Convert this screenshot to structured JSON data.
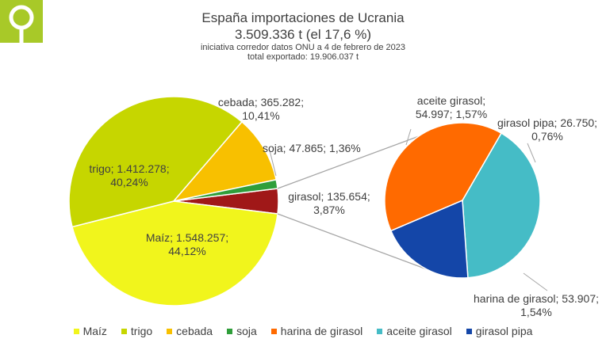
{
  "chart_data": {
    "type": "pie",
    "title": "España importaciones de Ucrania",
    "subtitle": "3.509.336 t (el 17,6 %)",
    "note_line1": "iniciativa corredor datos ONU a 4 de febrero de 2023",
    "note_line2": "total exportado: 19.906.037 t",
    "main_pie": [
      {
        "name": "Maíz",
        "value": 1548257,
        "label": [
          "Maíz; 1.548.257;",
          "44,12%"
        ],
        "color": "#f1f51c"
      },
      {
        "name": "trigo",
        "value": 1412278,
        "label": [
          "trigo; 1.412.278;",
          "40,24%"
        ],
        "color": "#c6d600"
      },
      {
        "name": "cebada",
        "value": 365282,
        "label": [
          "cebada; 365.282;",
          "10,41%"
        ],
        "color": "#f8c000"
      },
      {
        "name": "soja",
        "value": 47865,
        "label": [
          "soja; 47.865; 1,36%"
        ],
        "color": "#2f9e3a"
      },
      {
        "name": "girasol",
        "value": 135654,
        "label": [
          "girasol; 135.654;",
          "3,87%"
        ],
        "color": "#a01818"
      }
    ],
    "sub_pie": [
      {
        "name": "aceite girasol",
        "value": 54997,
        "label": [
          "aceite girasol;",
          "54.997; 1,57%"
        ],
        "color": "#45bcc6"
      },
      {
        "name": "girasol pipa",
        "value": 26750,
        "label": [
          "girasol pipa; 26.750;",
          "0,76%"
        ],
        "color": "#1446a8"
      },
      {
        "name": "harina de girasol",
        "value": 53907,
        "label": [
          "harina de girasol; 53.907;",
          "1,54%"
        ],
        "color": "#ff6a00"
      }
    ],
    "legend": [
      {
        "name": "Maíz",
        "color": "#f1f51c"
      },
      {
        "name": "trigo",
        "color": "#c6d600"
      },
      {
        "name": "cebada",
        "color": "#f8c000"
      },
      {
        "name": "soja",
        "color": "#2f9e3a"
      },
      {
        "name": "harina de girasol",
        "color": "#ff6a00"
      },
      {
        "name": "aceite girasol",
        "color": "#45bcc6"
      },
      {
        "name": "girasol pipa",
        "color": "#1446a8"
      }
    ],
    "legend_position": "bottom"
  },
  "logo": {
    "name": "logo-icon",
    "color": "#a8c928"
  }
}
